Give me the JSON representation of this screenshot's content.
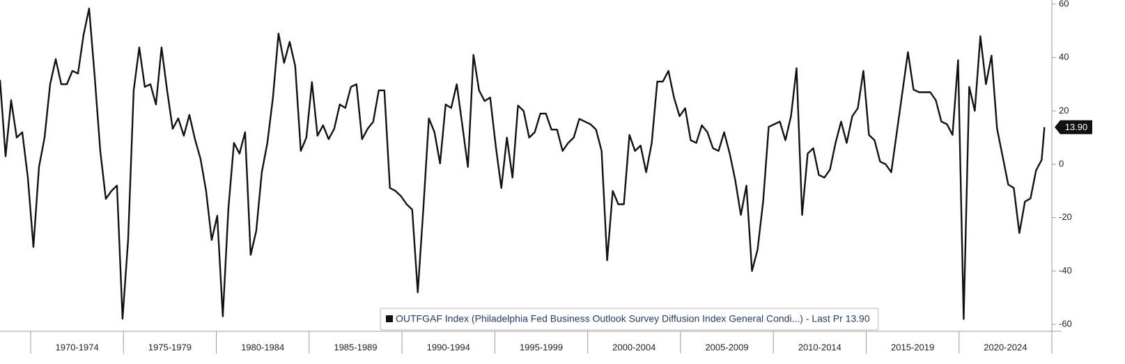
{
  "chart_data": {
    "type": "line",
    "xlim": [
      1968.35,
      2025
    ],
    "ylim": [
      -60,
      60
    ],
    "yticks": [
      -60,
      -40,
      -20,
      0,
      20,
      40,
      60
    ],
    "xticks": [
      1970,
      1975,
      1980,
      1985,
      1990,
      1995,
      2000,
      2005,
      2010,
      2015,
      2020,
      2025
    ],
    "x_period_labels": [
      "1970-1974",
      "1975-1979",
      "1980-1984",
      "1985-1989",
      "1990-1994",
      "1995-1999",
      "2000-2004",
      "2005-2009",
      "2010-2014",
      "2015-2019",
      "2020-2024"
    ],
    "legend_corner": "bottom-center",
    "x": [
      1968.35,
      1968.65,
      1968.95,
      1969.25,
      1969.55,
      1969.85,
      1970.15,
      1970.45,
      1970.75,
      1971.05,
      1971.35,
      1971.65,
      1971.95,
      1972.25,
      1972.55,
      1972.85,
      1973.15,
      1973.45,
      1973.75,
      1974.05,
      1974.35,
      1974.65,
      1974.95,
      1975.25,
      1975.55,
      1975.85,
      1976.15,
      1976.45,
      1976.75,
      1977.05,
      1977.35,
      1977.65,
      1977.95,
      1978.25,
      1978.55,
      1978.85,
      1979.15,
      1979.45,
      1979.75,
      1980.05,
      1980.35,
      1980.65,
      1980.95,
      1981.25,
      1981.55,
      1981.85,
      1982.15,
      1982.45,
      1982.75,
      1983.05,
      1983.35,
      1983.65,
      1983.95,
      1984.25,
      1984.55,
      1984.85,
      1985.15,
      1985.45,
      1985.75,
      1986.05,
      1986.35,
      1986.65,
      1986.95,
      1987.25,
      1987.55,
      1987.85,
      1988.15,
      1988.45,
      1988.75,
      1989.05,
      1989.35,
      1989.65,
      1989.95,
      1990.25,
      1990.55,
      1990.85,
      1991.15,
      1991.45,
      1991.75,
      1992.05,
      1992.35,
      1992.65,
      1992.95,
      1993.25,
      1993.55,
      1993.85,
      1994.15,
      1994.45,
      1994.75,
      1995.05,
      1995.35,
      1995.65,
      1995.95,
      1996.25,
      1996.55,
      1996.85,
      1997.15,
      1997.45,
      1997.75,
      1998.05,
      1998.35,
      1998.65,
      1998.95,
      1999.25,
      1999.55,
      1999.85,
      2000.15,
      2000.45,
      2000.75,
      2001.05,
      2001.35,
      2001.65,
      2001.95,
      2002.25,
      2002.55,
      2002.85,
      2003.15,
      2003.45,
      2003.75,
      2004.05,
      2004.35,
      2004.65,
      2004.95,
      2005.25,
      2005.55,
      2005.85,
      2006.15,
      2006.45,
      2006.75,
      2007.05,
      2007.35,
      2007.65,
      2007.95,
      2008.25,
      2008.55,
      2008.85,
      2009.15,
      2009.45,
      2009.75,
      2010.05,
      2010.35,
      2010.65,
      2010.95,
      2011.25,
      2011.55,
      2011.85,
      2012.15,
      2012.45,
      2012.75,
      2013.05,
      2013.35,
      2013.65,
      2013.95,
      2014.25,
      2014.55,
      2014.85,
      2015.15,
      2015.45,
      2015.75,
      2016.05,
      2016.35,
      2016.65,
      2016.95,
      2017.25,
      2017.55,
      2017.85,
      2018.15,
      2018.45,
      2018.75,
      2019.05,
      2019.35,
      2019.65,
      2019.95,
      2020.25,
      2020.55,
      2020.85,
      2021.15,
      2021.45,
      2021.75,
      2022.05,
      2022.35,
      2022.65,
      2022.95,
      2023.25,
      2023.55,
      2023.85,
      2024.15,
      2024.45,
      2024.6
    ],
    "series": [
      {
        "name": "OUTFGAF Index (Philadelphia Fed Business Outlook Survey Diffusion Index General Condi...) - Last Pr 13.90",
        "last_label": "13.90",
        "color": "#111111",
        "values": [
          31.6,
          3,
          24,
          10,
          12,
          -5,
          -31,
          -1,
          10,
          30,
          39.4,
          30,
          30,
          35,
          34,
          48.5,
          58.4,
          32.9,
          5,
          -13,
          -10,
          -8,
          -57.9,
          -28.4,
          27.7,
          43.8,
          29,
          30,
          22.4,
          43.8,
          27.7,
          13.3,
          17.2,
          10.7,
          18.5,
          9.4,
          2,
          -10,
          -28.4,
          -19.3,
          -57,
          -16.7,
          8,
          4,
          12,
          -34,
          -25,
          -3,
          8,
          25,
          49,
          38,
          45.9,
          36.8,
          5,
          10,
          30.8,
          10.7,
          14.6,
          9.4,
          13.3,
          22.4,
          21.1,
          29,
          30,
          9.4,
          13.3,
          15.9,
          27.7,
          27.7,
          -8.9,
          -10,
          -12,
          -15,
          -17,
          -48,
          -16.7,
          17.2,
          12,
          0.3,
          22.4,
          21.1,
          30,
          14.6,
          -1,
          41,
          27.7,
          23.7,
          25,
          6.8,
          -8.9,
          10,
          -5,
          22,
          20,
          10,
          12,
          19,
          19,
          13,
          13,
          5,
          8,
          10,
          17,
          16,
          15,
          13,
          5,
          -36,
          -10,
          -15,
          -15,
          11,
          5,
          7,
          -3,
          8,
          31,
          31,
          35,
          25,
          18,
          21,
          9,
          8,
          14.6,
          12,
          6,
          5,
          12,
          4,
          -6,
          -19,
          -8,
          -40,
          -32,
          -14,
          14,
          15,
          16,
          9,
          18,
          36,
          -19,
          4,
          6,
          -4,
          -5,
          -2,
          8,
          16,
          8,
          18,
          21,
          35,
          11,
          9,
          1,
          0,
          -3,
          12,
          27,
          42,
          28,
          27,
          27,
          27,
          24,
          16,
          15,
          11,
          39,
          -58,
          29,
          20,
          48,
          30,
          40.7,
          13.3,
          2.9,
          -7.6,
          -8.9,
          -25.8,
          -14,
          -12.8,
          -2.3,
          1.6,
          13.9
        ]
      }
    ]
  }
}
